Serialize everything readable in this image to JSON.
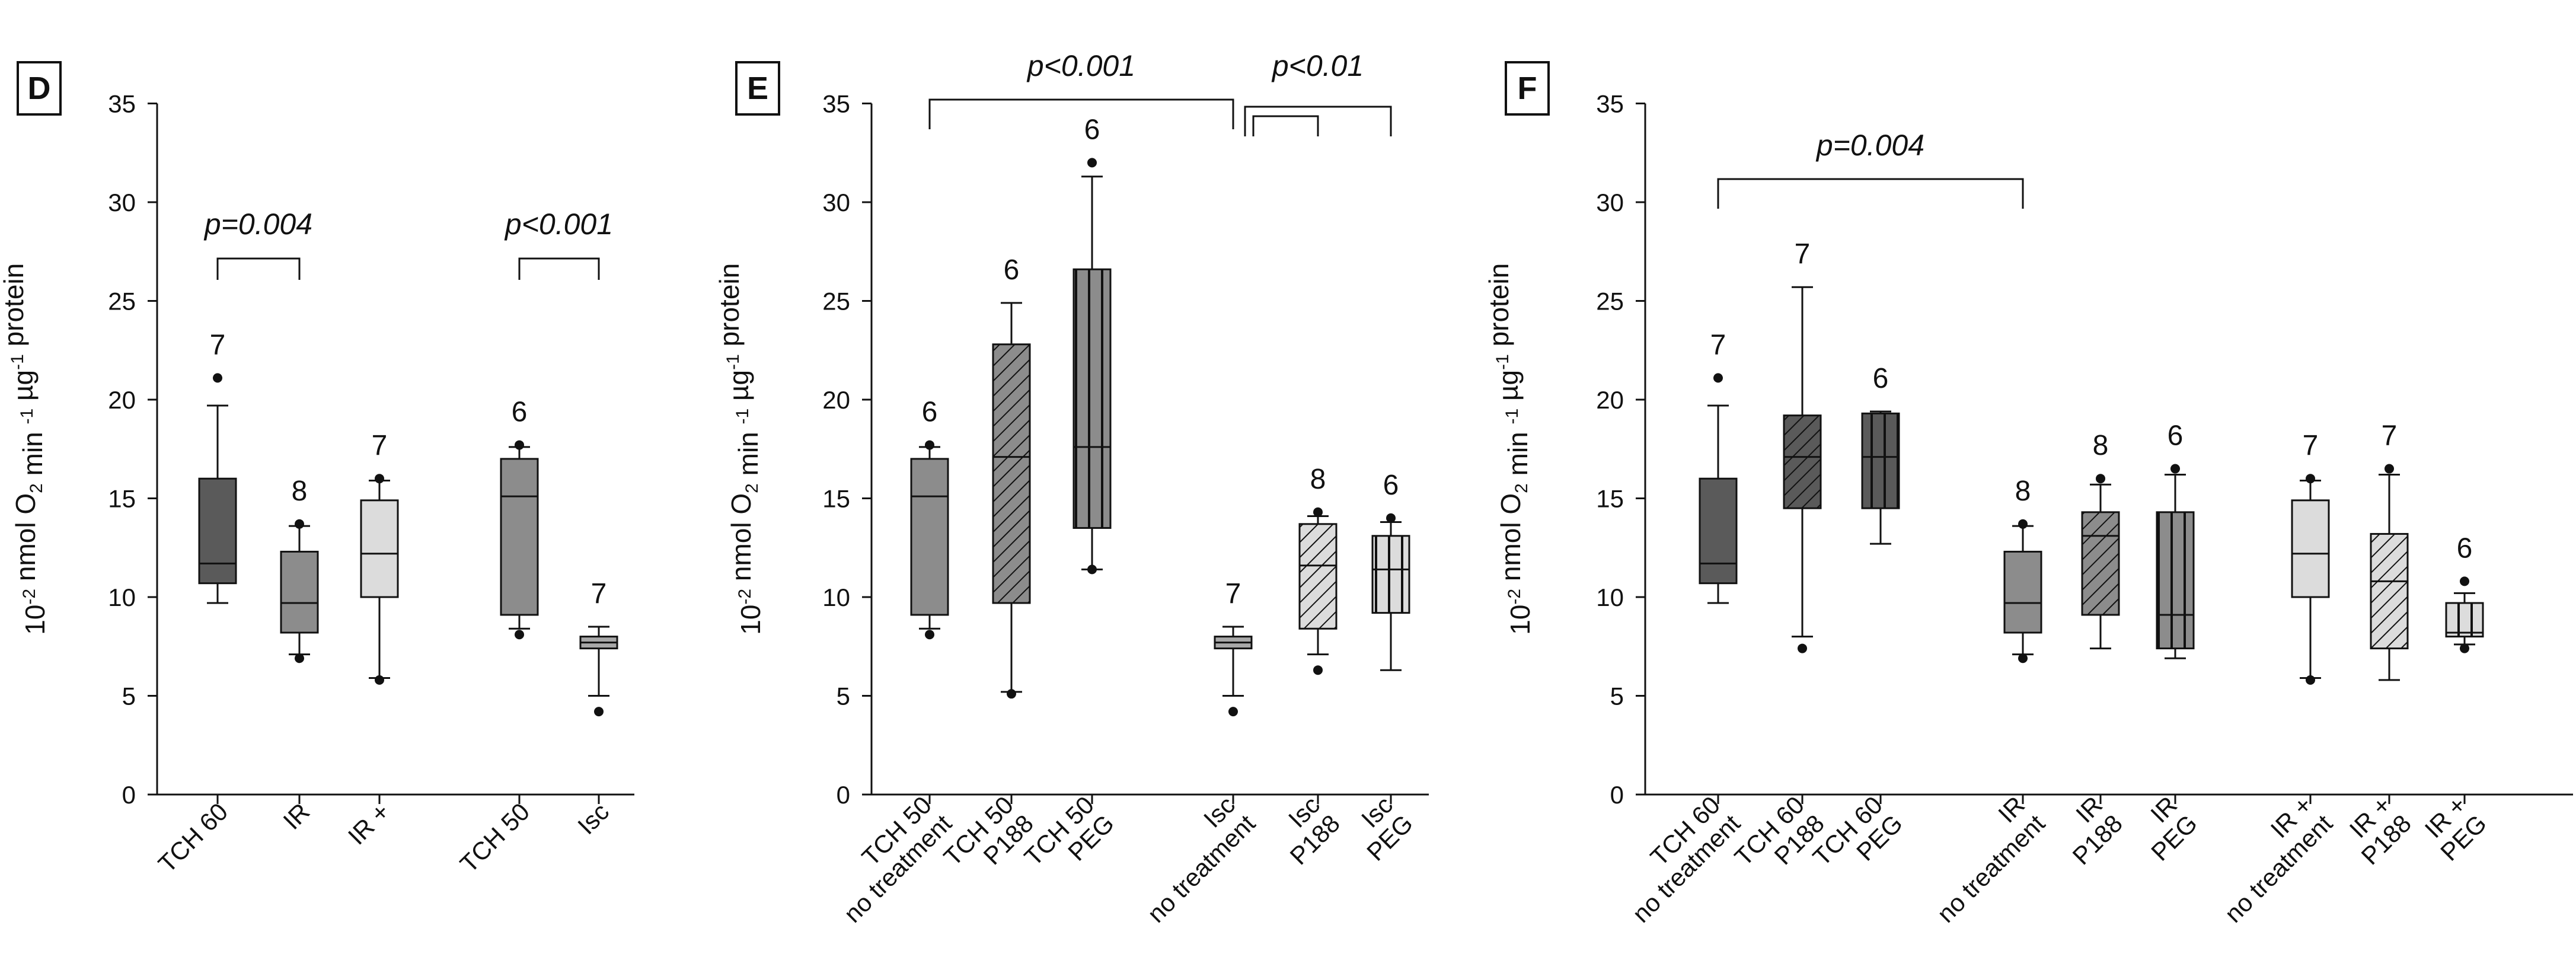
{
  "y_axis_label": {
    "base": "10",
    "exp1": "-2",
    "mid1": " nmol O",
    "sub": "2",
    "mid2": " min ",
    "exp2": "-1",
    "mid3": " µg",
    "exp3": "-1",
    "end": " protein"
  },
  "colors": {
    "dark": "#5a5a5a",
    "mid": "#8c8c8c",
    "light": "#a8a8a8",
    "pale": "#dcdcdc",
    "line": "#111111"
  },
  "chart_data": [
    {
      "panel": "D",
      "type": "box",
      "ylim": [
        0,
        35
      ],
      "yticks": [
        0,
        5,
        10,
        15,
        20,
        25,
        30,
        35
      ],
      "categories": [
        "TCH 60",
        "IR",
        "IR +",
        "TCH 50",
        "Isc"
      ],
      "boxes": [
        {
          "label": "TCH 60",
          "n": "7",
          "fill": "dark",
          "hatch": "none",
          "min": 9.7,
          "q1": 10.7,
          "median": 11.7,
          "q3": 16.0,
          "max": 19.7,
          "outliers": [
            21.1
          ]
        },
        {
          "label": "IR",
          "n": "8",
          "fill": "mid",
          "hatch": "none",
          "min": 7.1,
          "q1": 8.2,
          "median": 9.7,
          "q3": 12.3,
          "max": 13.6,
          "outliers": [
            13.7,
            6.9
          ]
        },
        {
          "label": "IR +",
          "n": "7",
          "fill": "pale",
          "hatch": "none",
          "min": 5.9,
          "q1": 10.0,
          "median": 12.2,
          "q3": 14.9,
          "max": 15.9,
          "outliers": [
            16.0,
            5.8
          ]
        },
        {
          "label": "TCH 50",
          "n": "6",
          "fill": "mid",
          "hatch": "none",
          "min": 8.4,
          "q1": 9.1,
          "median": 15.1,
          "q3": 17.0,
          "max": 17.6,
          "outliers": [
            17.7,
            8.1
          ]
        },
        {
          "label": "Isc",
          "n": "7",
          "fill": "light",
          "hatch": "none",
          "min": 5.0,
          "q1": 7.4,
          "median": 7.7,
          "q3": 8.0,
          "max": 8.5,
          "outliers": [
            4.2
          ]
        }
      ],
      "brackets": [
        {
          "text": "p=0.004",
          "from": "TCH 60",
          "to": "IR"
        },
        {
          "text": "p<0.001",
          "from": "TCH 50",
          "to": "Isc"
        }
      ]
    },
    {
      "panel": "E",
      "type": "box",
      "ylim": [
        0,
        35
      ],
      "yticks": [
        0,
        5,
        10,
        15,
        20,
        25,
        30,
        35
      ],
      "categories": [
        "TCH 50|no treatment",
        "TCH 50|P188",
        "TCH 50|PEG",
        "Isc|no treatment",
        "Isc|P188",
        "Isc|PEG"
      ],
      "boxes": [
        {
          "label": "TCH 50|no treatment",
          "n": "6",
          "fill": "mid",
          "hatch": "none",
          "min": 8.4,
          "q1": 9.1,
          "median": 15.1,
          "q3": 17.0,
          "max": 17.6,
          "outliers": [
            17.7,
            8.1
          ]
        },
        {
          "label": "TCH 50|P188",
          "n": "6",
          "fill": "mid",
          "hatch": "diag",
          "min": 5.2,
          "q1": 9.7,
          "median": 17.1,
          "q3": 22.8,
          "max": 24.9,
          "outliers": [
            5.1
          ]
        },
        {
          "label": "TCH 50|PEG",
          "n": "6",
          "fill": "mid",
          "hatch": "vert",
          "min": 11.4,
          "q1": 13.5,
          "median": 17.6,
          "q3": 26.6,
          "max": 31.3,
          "outliers": [
            32.0,
            11.4
          ]
        },
        {
          "label": "Isc|no treatment",
          "n": "7",
          "fill": "light",
          "hatch": "none",
          "min": 5.0,
          "q1": 7.4,
          "median": 7.7,
          "q3": 8.0,
          "max": 8.5,
          "outliers": [
            4.2
          ]
        },
        {
          "label": "Isc|P188",
          "n": "8",
          "fill": "pale",
          "hatch": "diag",
          "min": 7.1,
          "q1": 8.4,
          "median": 11.6,
          "q3": 13.7,
          "max": 14.1,
          "outliers": [
            14.3,
            6.3
          ]
        },
        {
          "label": "Isc|PEG",
          "n": "6",
          "fill": "pale",
          "hatch": "vert",
          "min": 6.3,
          "q1": 9.2,
          "median": 11.4,
          "q3": 13.1,
          "max": 13.8,
          "outliers": [
            14.0
          ]
        }
      ],
      "brackets": [
        {
          "text": "p<0.001",
          "from": "TCH 50|no treatment",
          "to": "Isc|no treatment"
        },
        {
          "text": "p<0.01",
          "from": "Isc|no treatment",
          "to": "Isc|PEG",
          "inner_to": "Isc|P188"
        }
      ]
    },
    {
      "panel": "F",
      "type": "box",
      "ylim": [
        0,
        35
      ],
      "yticks": [
        0,
        5,
        10,
        15,
        20,
        25,
        30,
        35
      ],
      "categories": [
        "TCH 60|no treatment",
        "TCH 60|P188",
        "TCH 60|PEG",
        "IR|no treatment",
        "IR|P188",
        "IR|PEG",
        "IR +|no treatment",
        "IR +|P188",
        "IR +|PEG"
      ],
      "boxes": [
        {
          "label": "TCH 60|no treatment",
          "n": "7",
          "fill": "dark",
          "hatch": "none",
          "min": 9.7,
          "q1": 10.7,
          "median": 11.7,
          "q3": 16.0,
          "max": 19.7,
          "outliers": [
            21.1
          ]
        },
        {
          "label": "TCH 60|P188",
          "n": "7",
          "fill": "dark",
          "hatch": "diag",
          "min": 8.0,
          "q1": 14.5,
          "median": 17.1,
          "q3": 19.2,
          "max": 25.7,
          "outliers": [
            7.4
          ]
        },
        {
          "label": "TCH 60|PEG",
          "n": "6",
          "fill": "dark",
          "hatch": "vert",
          "min": 12.7,
          "q1": 14.5,
          "median": 17.1,
          "q3": 19.3,
          "max": 19.4,
          "outliers": []
        },
        {
          "label": "IR|no treatment",
          "n": "8",
          "fill": "mid",
          "hatch": "none",
          "min": 7.1,
          "q1": 8.2,
          "median": 9.7,
          "q3": 12.3,
          "max": 13.6,
          "outliers": [
            13.7,
            6.9
          ]
        },
        {
          "label": "IR|P188",
          "n": "8",
          "fill": "mid",
          "hatch": "diag",
          "min": 7.4,
          "q1": 9.1,
          "median": 13.1,
          "q3": 14.3,
          "max": 15.7,
          "outliers": [
            16.0
          ]
        },
        {
          "label": "IR|PEG",
          "n": "6",
          "fill": "mid",
          "hatch": "vert",
          "min": 6.9,
          "q1": 7.4,
          "median": 9.1,
          "q3": 14.3,
          "max": 16.2,
          "outliers": [
            16.5
          ]
        },
        {
          "label": "IR +|no treatment",
          "n": "7",
          "fill": "pale",
          "hatch": "none",
          "min": 5.9,
          "q1": 10.0,
          "median": 12.2,
          "q3": 14.9,
          "max": 15.9,
          "outliers": [
            16.0,
            5.8
          ]
        },
        {
          "label": "IR +|P188",
          "n": "7",
          "fill": "pale",
          "hatch": "diag",
          "min": 5.8,
          "q1": 7.4,
          "median": 10.8,
          "q3": 13.2,
          "max": 16.2,
          "outliers": [
            16.5
          ]
        },
        {
          "label": "IR +|PEG",
          "n": "6",
          "fill": "pale",
          "hatch": "vert",
          "min": 7.6,
          "q1": 8.0,
          "median": 8.2,
          "q3": 9.7,
          "max": 10.2,
          "outliers": [
            10.8,
            7.4
          ]
        }
      ],
      "brackets": [
        {
          "text": "p=0.004",
          "from": "TCH 60|no treatment",
          "to": "IR|no treatment"
        }
      ]
    }
  ]
}
